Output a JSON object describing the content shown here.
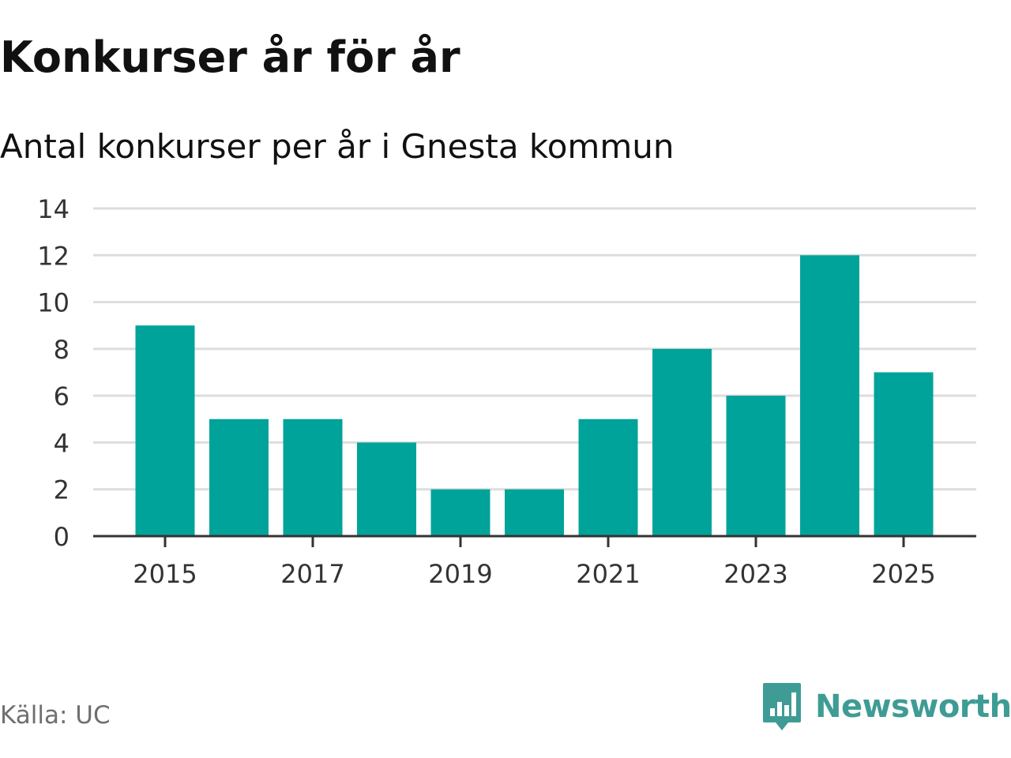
{
  "header": {
    "title": "Konkurser år för år",
    "subtitle": "Antal konkurser per år i Gnesta kommun"
  },
  "footer": {
    "source": "Källa: UC",
    "brand": "Newsworthy"
  },
  "colors": {
    "bar": "#00a39a",
    "grid": "#dddddd",
    "axis": "#333333",
    "text": "#111111",
    "brand": "#3e9c95",
    "source": "#6f6f6f"
  },
  "chart_data": {
    "type": "bar",
    "title": "Konkurser år för år",
    "subtitle": "Antal konkurser per år i Gnesta kommun",
    "categories": [
      "2015",
      "2016",
      "2017",
      "2018",
      "2019",
      "2020",
      "2021",
      "2022",
      "2023",
      "2024",
      "2025"
    ],
    "values": [
      9,
      5,
      5,
      4,
      2,
      2,
      5,
      8,
      6,
      12,
      7
    ],
    "x_tick_labels": [
      "2015",
      "2017",
      "2019",
      "2021",
      "2023",
      "2025"
    ],
    "y_ticks": [
      0,
      2,
      4,
      6,
      8,
      10,
      12,
      14
    ],
    "ylim": [
      0,
      14
    ],
    "xlabel": "",
    "ylabel": "",
    "grid": true,
    "legend": "none"
  }
}
